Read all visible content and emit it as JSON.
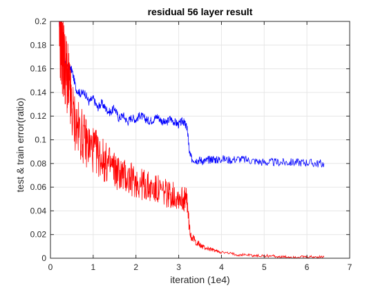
{
  "chart_data": {
    "type": "line",
    "title": "residual 56 layer result",
    "xlabel": "iteration (1e4)",
    "ylabel": "test & train error(ratio)",
    "xlim": [
      0,
      7
    ],
    "ylim": [
      0,
      0.2
    ],
    "xticks": [
      0,
      1,
      2,
      3,
      4,
      5,
      6,
      7
    ],
    "yticks": [
      0,
      0.02,
      0.04,
      0.06,
      0.08,
      0.1,
      0.12,
      0.14,
      0.16,
      0.18,
      0.2
    ],
    "ytick_labels": [
      "0",
      "0.02",
      "0.04",
      "0.06",
      "0.08",
      "0.1",
      "0.12",
      "0.14",
      "0.16",
      "0.18",
      "0.2"
    ],
    "grid": true,
    "series": [
      {
        "color": "#0000ff",
        "x": [
          0.2,
          0.25,
          0.3,
          0.35,
          0.4,
          0.45,
          0.5,
          0.6,
          0.7,
          0.8,
          0.9,
          1.0,
          1.1,
          1.2,
          1.3,
          1.4,
          1.5,
          1.6,
          1.7,
          1.8,
          1.9,
          2.0,
          2.1,
          2.2,
          2.3,
          2.4,
          2.5,
          2.6,
          2.7,
          2.8,
          2.9,
          3.0,
          3.1,
          3.15,
          3.2,
          3.25,
          3.3,
          3.4,
          3.5,
          3.6,
          3.7,
          3.8,
          3.9,
          4.0,
          4.2,
          4.4,
          4.6,
          4.8,
          5.0,
          5.2,
          5.4,
          5.6,
          5.8,
          6.0,
          6.2,
          6.4
        ],
        "y": [
          0.2,
          0.188,
          0.17,
          0.165,
          0.16,
          0.16,
          0.159,
          0.143,
          0.139,
          0.14,
          0.132,
          0.135,
          0.127,
          0.131,
          0.126,
          0.123,
          0.127,
          0.118,
          0.121,
          0.115,
          0.119,
          0.117,
          0.121,
          0.118,
          0.116,
          0.117,
          0.12,
          0.116,
          0.114,
          0.118,
          0.115,
          0.113,
          0.116,
          0.113,
          0.11,
          0.09,
          0.084,
          0.083,
          0.083,
          0.082,
          0.083,
          0.084,
          0.083,
          0.084,
          0.083,
          0.084,
          0.083,
          0.082,
          0.081,
          0.081,
          0.081,
          0.081,
          0.081,
          0.081,
          0.08,
          0.08
        ]
      },
      {
        "color": "#ff0000",
        "x": [
          0.2,
          0.25,
          0.3,
          0.35,
          0.4,
          0.45,
          0.5,
          0.6,
          0.7,
          0.8,
          0.9,
          1.0,
          1.1,
          1.2,
          1.3,
          1.4,
          1.5,
          1.6,
          1.7,
          1.8,
          1.9,
          2.0,
          2.1,
          2.2,
          2.3,
          2.4,
          2.5,
          2.6,
          2.7,
          2.8,
          2.9,
          3.0,
          3.1,
          3.15,
          3.2,
          3.25,
          3.3,
          3.4,
          3.5,
          3.6,
          3.7,
          3.8,
          3.9,
          4.0,
          4.2,
          4.4,
          4.6,
          4.8,
          5.0,
          5.2,
          5.4,
          5.6,
          5.8,
          6.0,
          6.2,
          6.4
        ],
        "y": [
          0.2,
          0.18,
          0.17,
          0.16,
          0.15,
          0.14,
          0.125,
          0.112,
          0.106,
          0.1,
          0.095,
          0.092,
          0.088,
          0.085,
          0.08,
          0.078,
          0.075,
          0.072,
          0.07,
          0.068,
          0.066,
          0.065,
          0.063,
          0.062,
          0.06,
          0.058,
          0.058,
          0.056,
          0.055,
          0.054,
          0.053,
          0.052,
          0.05,
          0.05,
          0.048,
          0.025,
          0.018,
          0.014,
          0.011,
          0.009,
          0.008,
          0.007,
          0.006,
          0.005,
          0.004,
          0.003,
          0.003,
          0.002,
          0.002,
          0.002,
          0.001,
          0.001,
          0.001,
          0.001,
          0.001,
          0.001
        ]
      }
    ]
  }
}
